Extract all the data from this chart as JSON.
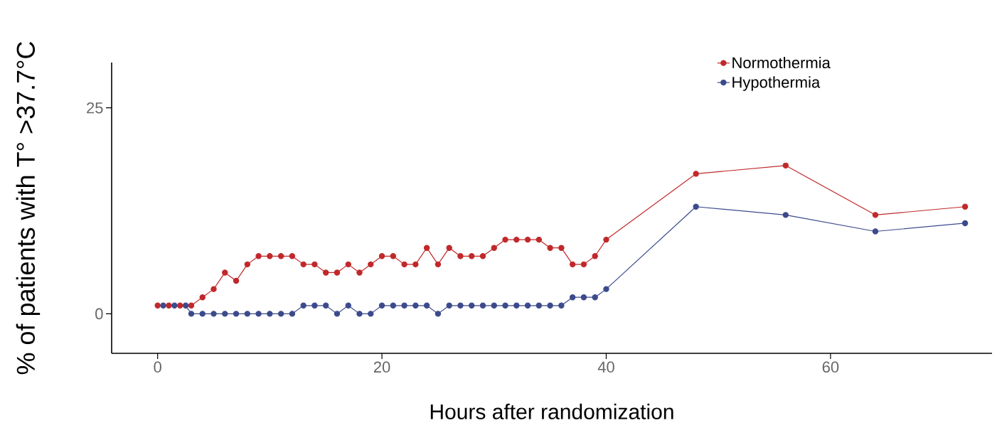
{
  "chart_data": {
    "type": "line",
    "xlabel": "Hours after randomization",
    "ylabel": "% of patients with T° >37.7°C",
    "xlim": [
      -4.1,
      74.4
    ],
    "ylim": [
      -4.8,
      30.5
    ],
    "xticks": [
      0,
      20,
      40,
      60
    ],
    "yticks": [
      0,
      25
    ],
    "legend": "top right",
    "marker": "circle",
    "line_style": "solid",
    "series": [
      {
        "name": "Normothermia",
        "color": "#c0282a",
        "x": [
          0,
          1,
          2,
          3,
          4,
          5,
          6,
          7,
          8,
          9,
          10,
          11,
          12,
          13,
          14,
          15,
          16,
          17,
          18,
          19,
          20,
          21,
          22,
          23,
          24,
          25,
          26,
          27,
          28,
          29,
          30,
          31,
          32,
          33,
          34,
          35,
          36,
          37,
          38,
          39,
          40,
          48,
          56,
          64,
          72
        ],
        "values": [
          1,
          1,
          1,
          1,
          2,
          3,
          5,
          4,
          6,
          7,
          7,
          7,
          7,
          6,
          6,
          5,
          5,
          6,
          5,
          6,
          7,
          7,
          6,
          6,
          8,
          6,
          8,
          7,
          7,
          7,
          8,
          9,
          9,
          9,
          9,
          8,
          8,
          6,
          6,
          7,
          9,
          17,
          18,
          12,
          13
        ]
      },
      {
        "name": "Hypothermia",
        "color": "#3c4a8c",
        "x": [
          0.5,
          1.5,
          2.5,
          3,
          4,
          5,
          6,
          7,
          8,
          9,
          10,
          11,
          12,
          13,
          14,
          15,
          16,
          17,
          18,
          19,
          20,
          21,
          22,
          23,
          24,
          25,
          26,
          27,
          28,
          29,
          30,
          31,
          32,
          33,
          34,
          35,
          36,
          37,
          38,
          39,
          40,
          48,
          56,
          64,
          72
        ],
        "values": [
          1,
          1,
          1,
          0,
          0,
          0,
          0,
          0,
          0,
          0,
          0,
          0,
          0,
          1,
          1,
          1,
          0,
          1,
          0,
          0,
          1,
          1,
          1,
          1,
          1,
          0,
          1,
          1,
          1,
          1,
          1,
          1,
          1,
          1,
          1,
          1,
          1,
          2,
          2,
          2,
          3,
          13,
          12,
          10,
          11
        ]
      }
    ]
  }
}
